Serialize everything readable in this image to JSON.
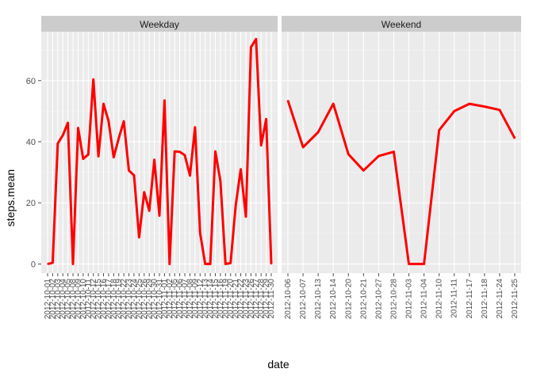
{
  "chart_data": {
    "type": "line",
    "xlabel": "date",
    "ylabel": "steps.mean",
    "ylim": [
      -3,
      76
    ],
    "yticks": [
      0,
      20,
      40,
      60
    ],
    "grid": true,
    "line_color": "#ff0000",
    "panel_background": "#ebebeb",
    "strip_background": "#cccccc",
    "panels": [
      {
        "title": "Weekday",
        "x": [
          "2012-10-01",
          "2012-10-02",
          "2012-10-03",
          "2012-10-04",
          "2012-10-05",
          "2012-10-08",
          "2012-10-09",
          "2012-10-10",
          "2012-10-11",
          "2012-10-12",
          "2012-10-15",
          "2012-10-16",
          "2012-10-17",
          "2012-10-18",
          "2012-10-19",
          "2012-10-22",
          "2012-10-23",
          "2012-10-24",
          "2012-10-25",
          "2012-10-26",
          "2012-10-29",
          "2012-10-30",
          "2012-10-31",
          "2012-11-01",
          "2012-11-02",
          "2012-11-05",
          "2012-11-06",
          "2012-11-07",
          "2012-11-08",
          "2012-11-09",
          "2012-11-12",
          "2012-11-13",
          "2012-11-14",
          "2012-11-15",
          "2012-11-16",
          "2012-11-19",
          "2012-11-20",
          "2012-11-21",
          "2012-11-22",
          "2012-11-23",
          "2012-11-26",
          "2012-11-27",
          "2012-11-28",
          "2012-11-29",
          "2012-11-30"
        ],
        "values": [
          0,
          0.4,
          39.4,
          42.1,
          46.2,
          0,
          44.5,
          34.4,
          35.8,
          60.4,
          35.2,
          52.4,
          46.7,
          34.9,
          41.1,
          46.7,
          30.6,
          29.0,
          8.7,
          23.5,
          17.4,
          34.1,
          15.8,
          53.5,
          0,
          36.8,
          36.7,
          35.6,
          28.9,
          44.7,
          10.1,
          0,
          0,
          36.8,
          27.1,
          0,
          0.3,
          19.0,
          31.0,
          15.5,
          70.9,
          73.6,
          38.8,
          47.4,
          0
        ]
      },
      {
        "title": "Weekend",
        "x": [
          "2012-10-06",
          "2012-10-07",
          "2012-10-13",
          "2012-10-14",
          "2012-10-20",
          "2012-10-21",
          "2012-10-27",
          "2012-10-28",
          "2012-11-03",
          "2012-11-04",
          "2012-11-10",
          "2012-11-11",
          "2012-11-17",
          "2012-11-18",
          "2012-11-24",
          "2012-11-25"
        ],
        "values": [
          53.5,
          38.2,
          43.1,
          52.4,
          35.9,
          30.6,
          35.3,
          36.7,
          0,
          0,
          43.8,
          50.0,
          52.4,
          51.5,
          50.4,
          41.1
        ]
      }
    ]
  }
}
